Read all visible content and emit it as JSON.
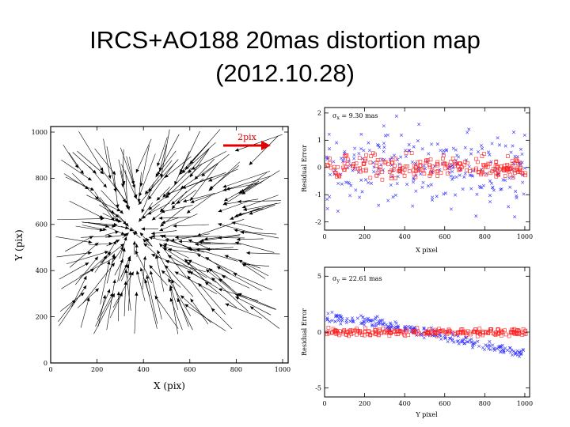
{
  "slide": {
    "title_line1": "IRCS+AO188 20mas distortion map",
    "title_line2": "(2012.10.28)"
  },
  "chart_data": [
    {
      "type": "quiver",
      "xlabel": "X (pix)",
      "ylabel": "Y (pix)",
      "xlim": [
        0,
        1024
      ],
      "ylim": [
        0,
        1024
      ],
      "xticks": [
        0,
        200,
        400,
        600,
        800,
        1000
      ],
      "yticks": [
        0,
        200,
        400,
        600,
        800,
        1000
      ],
      "scale_arrow": {
        "label": "2pix",
        "length_pix": 2,
        "color": "#e00000"
      },
      "convergence_center": [
        360,
        570
      ],
      "vectors": "radial field converging toward the central region; arrow length in distortion pixels scaled for display"
    },
    {
      "type": "scatter",
      "annotation": {
        "symbol": "σ",
        "sub": "x",
        "text": " = 9.30 mas"
      },
      "xlabel": "X pixel",
      "ylabel": "Residual Error",
      "xlim": [
        0,
        1024
      ],
      "ylim": [
        -2.3,
        2.2
      ],
      "xticks": [
        0,
        200,
        400,
        600,
        800,
        1000
      ],
      "yticks": [
        -2,
        -1,
        0,
        1,
        2
      ],
      "series": [
        {
          "marker": "x",
          "color": "#3030ff",
          "spread": 2.0,
          "trend": "flat"
        },
        {
          "marker": "square",
          "color": "#ff2020",
          "spread": 0.6,
          "trend": "flat"
        }
      ]
    },
    {
      "type": "scatter",
      "annotation": {
        "symbol": "σ",
        "sub": "y",
        "text": " = 22.61 mas"
      },
      "xlabel": "Y pixel",
      "ylabel": "Residual Error",
      "xlim": [
        0,
        1024
      ],
      "ylim": [
        -5.8,
        5.8
      ],
      "xticks": [
        0,
        200,
        400,
        600,
        800,
        1000
      ],
      "yticks": [
        -5,
        0,
        5
      ],
      "series": [
        {
          "marker": "x",
          "color": "#3030ff",
          "spread": 0.6,
          "trend": "sloped",
          "start": 1.3,
          "end": -2.0
        },
        {
          "marker": "square",
          "color": "#ff2020",
          "spread": 0.5,
          "trend": "flat"
        }
      ]
    }
  ]
}
